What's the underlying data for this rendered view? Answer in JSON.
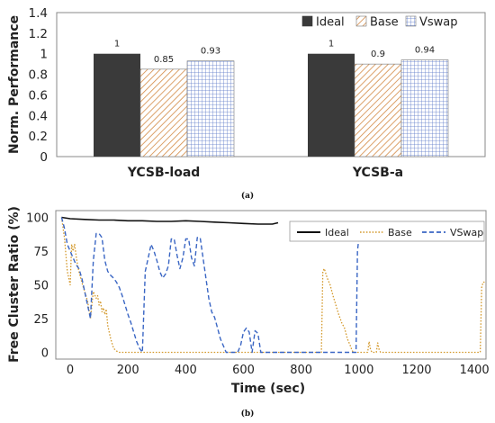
{
  "chart_data": [
    {
      "type": "bar",
      "caption": "(a)",
      "ylabel": "Norm. Performance",
      "ylim": [
        0,
        1.4
      ],
      "yticks": [
        "0",
        "0.2",
        "0.4",
        "0.6",
        "0.8",
        "1",
        "1.2",
        "1.4"
      ],
      "categories": [
        "YCSB-load",
        "YCSB-a"
      ],
      "legend_position": "top-right",
      "grid": false,
      "series": [
        {
          "name": "Ideal",
          "values": [
            1,
            1
          ],
          "labels": [
            "1",
            "1"
          ],
          "color": "#3a3a3a",
          "pattern": "solid"
        },
        {
          "name": "Base",
          "values": [
            0.85,
            0.9
          ],
          "labels": [
            "0.85",
            "0.9"
          ],
          "color": "#d38a45",
          "pattern": "diagonal-hatch"
        },
        {
          "name": "Vswap",
          "values": [
            0.93,
            0.94
          ],
          "labels": [
            "0.93",
            "0.94"
          ],
          "color": "#5a78c8",
          "pattern": "grid-hatch"
        }
      ]
    },
    {
      "type": "line",
      "caption": "(b)",
      "xlabel": "Time (sec)",
      "ylabel": "Free Cluster Ratio (%)",
      "xlim": [
        -50,
        1440
      ],
      "ylim": [
        -5,
        105
      ],
      "xticks": [
        "0",
        "200",
        "400",
        "600",
        "800",
        "1000",
        "1200",
        "1400"
      ],
      "yticks": [
        "0",
        "25",
        "50",
        "75",
        "100"
      ],
      "legend_position": "top-right",
      "grid": false,
      "series": [
        {
          "name": "Ideal",
          "color": "#111111",
          "dash": "solid",
          "x": [
            -30,
            0,
            50,
            100,
            150,
            200,
            250,
            300,
            350,
            400,
            450,
            500,
            550,
            600,
            650,
            700,
            720
          ],
          "y": [
            100,
            99,
            98.5,
            98,
            98,
            97.5,
            97.5,
            97,
            97,
            97.5,
            97,
            96.5,
            96,
            95.5,
            95,
            95,
            96
          ]
        },
        {
          "name": "Base",
          "color": "#d49a2e",
          "dash": "dotted",
          "x": [
            -30,
            -20,
            -10,
            0,
            5,
            10,
            15,
            20,
            25,
            30,
            40,
            50,
            60,
            70,
            80,
            90,
            95,
            100,
            105,
            110,
            115,
            120,
            125,
            130,
            140,
            150,
            160,
            170,
            180,
            200,
            250,
            300,
            350,
            870,
            875,
            880,
            890,
            900,
            910,
            920,
            930,
            940,
            950,
            960,
            970,
            975,
            980,
            990,
            1000,
            1030,
            1035,
            1040,
            1045,
            1060,
            1065,
            1070,
            1075,
            1080,
            1090,
            1100,
            1200,
            1300,
            1420,
            1425,
            1430,
            1440
          ],
          "y": [
            100,
            85,
            60,
            50,
            80,
            75,
            80,
            72,
            65,
            60,
            52,
            45,
            38,
            25,
            45,
            40,
            42,
            35,
            38,
            30,
            33,
            28,
            32,
            20,
            10,
            3,
            1,
            0,
            0,
            0,
            0,
            0,
            0,
            0,
            60,
            62,
            55,
            50,
            42,
            35,
            28,
            22,
            18,
            10,
            5,
            2,
            0,
            0,
            0,
            0,
            8,
            2,
            0,
            0,
            7,
            2,
            0,
            0,
            0,
            0,
            0,
            0,
            0,
            48,
            52,
            52
          ]
        },
        {
          "name": "VSwap",
          "color": "#3a66c4",
          "dash": "dashed",
          "x": [
            -30,
            -20,
            -10,
            0,
            10,
            20,
            30,
            40,
            50,
            60,
            70,
            80,
            90,
            100,
            110,
            120,
            130,
            140,
            150,
            160,
            170,
            180,
            190,
            200,
            210,
            220,
            230,
            240,
            250,
            260,
            270,
            280,
            290,
            300,
            310,
            320,
            330,
            340,
            350,
            360,
            370,
            380,
            390,
            400,
            410,
            420,
            430,
            440,
            450,
            460,
            470,
            480,
            490,
            500,
            510,
            520,
            530,
            540,
            550,
            560,
            570,
            580,
            590,
            600,
            610,
            620,
            630,
            640,
            650,
            660,
            670,
            680,
            700,
            800,
            900,
            990,
            995,
            1000,
            1005,
            1010,
            1020
          ],
          "y": [
            100,
            92,
            80,
            75,
            70,
            65,
            62,
            55,
            45,
            35,
            25,
            68,
            88,
            88,
            85,
            68,
            60,
            57,
            55,
            52,
            48,
            42,
            35,
            28,
            22,
            15,
            8,
            3,
            0,
            60,
            70,
            80,
            75,
            68,
            60,
            55,
            58,
            64,
            84,
            84,
            72,
            62,
            70,
            84,
            84,
            70,
            64,
            85,
            85,
            70,
            55,
            40,
            30,
            26,
            18,
            10,
            5,
            0,
            0,
            0,
            0,
            0,
            5,
            15,
            18,
            15,
            0,
            16,
            14,
            0,
            0,
            0,
            0,
            0,
            0,
            0,
            75,
            85,
            85,
            85,
            84
          ]
        }
      ]
    }
  ]
}
